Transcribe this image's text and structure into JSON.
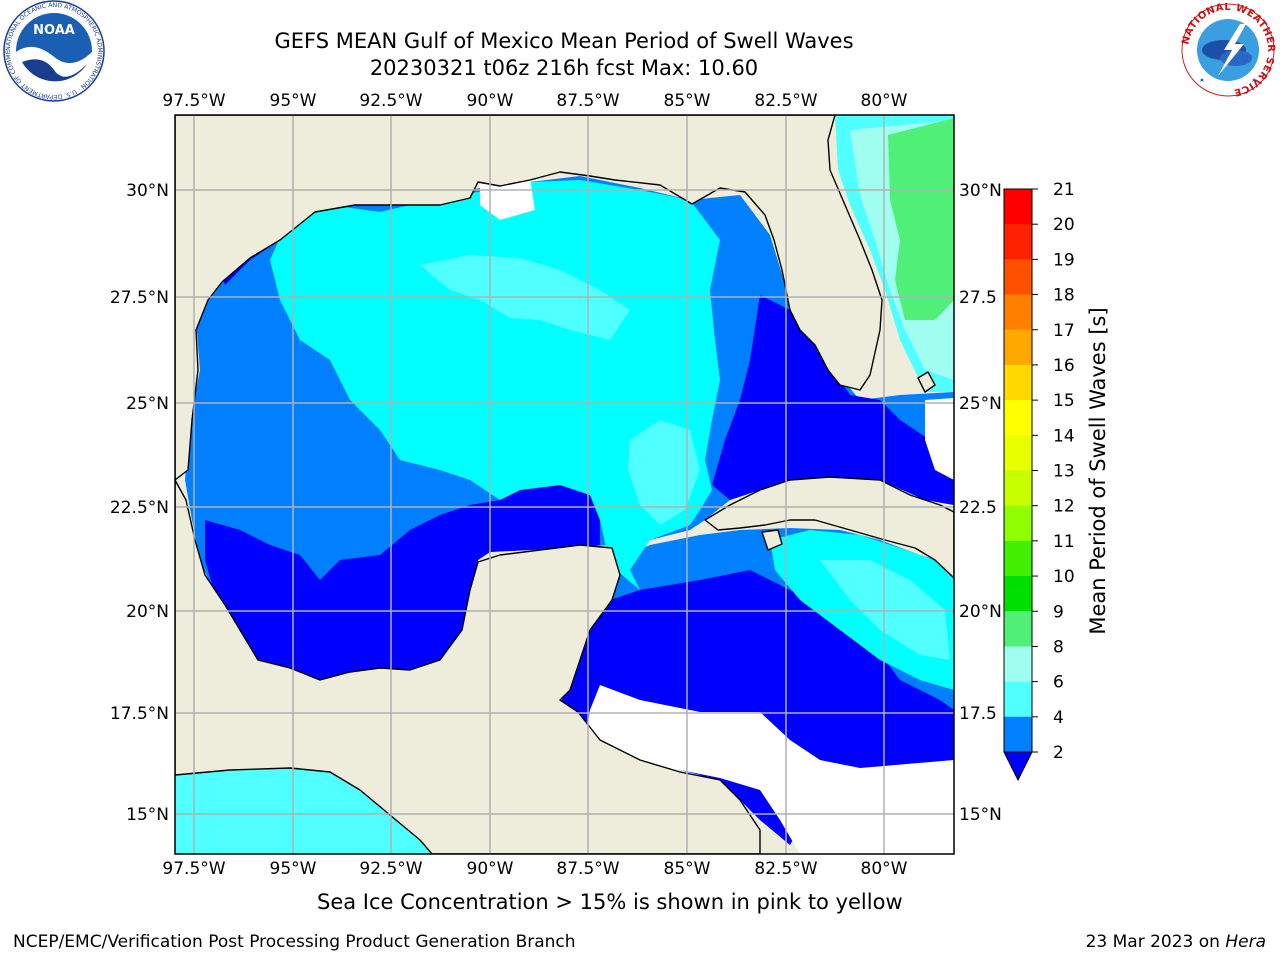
{
  "title": {
    "line1": "GEFS MEAN Gulf of Mexico Mean Period of Swell Waves",
    "line2": "20230321 t06z 216h fcst   Max: 10.60"
  },
  "map": {
    "lon_ticks": [
      "97.5°W",
      "95°W",
      "92.5°W",
      "90°W",
      "87.5°W",
      "85°W",
      "82.5°W",
      "80°W"
    ],
    "lat_ticks": [
      "30°N",
      "27.5°N",
      "25°N",
      "22.5°N",
      "20°N",
      "17.5°N",
      "15°N"
    ],
    "lat_ticks_right": [
      "30°N",
      "27.5",
      "25°N",
      "22.5",
      "20°N",
      "17.5",
      "15°N"
    ],
    "colors": {
      "land": "#eeeddb",
      "grid": "#b0b0b0",
      "coast": "#000000"
    }
  },
  "colorbar": {
    "label": "Mean Period of Swell Waves [s]",
    "ticks": [
      "21",
      "20",
      "19",
      "18",
      "17",
      "16",
      "15",
      "14",
      "13",
      "12",
      "11",
      "10",
      "9",
      "8",
      "6",
      "4",
      "2"
    ],
    "colors": [
      "#ff0000",
      "#ff2200",
      "#ff5000",
      "#ff8000",
      "#ffa800",
      "#ffd800",
      "#ffff00",
      "#e8ff00",
      "#c8ff00",
      "#90ff00",
      "#40f000",
      "#00e000",
      "#50f078",
      "#a0fff0",
      "#50ffff",
      "#00ffff",
      "#0080ff"
    ],
    "underflow_color": "#0000ff"
  },
  "note": "Sea Ice Concentration > 15% is shown in pink to yellow",
  "footer": {
    "left": "NCEP/EMC/Verification Post Processing Product Generation Branch",
    "right_date": "23 Mar 2023 on ",
    "right_host": "Hera"
  },
  "logos": {
    "noaa": "NOAA",
    "noaa_ring": "NATIONAL OCEANIC AND ATMOSPHERIC ADMINISTRATION · U.S. DEPARTMENT OF COMMERCE",
    "nws_ring": "NATIONAL WEATHER SERVICE"
  }
}
